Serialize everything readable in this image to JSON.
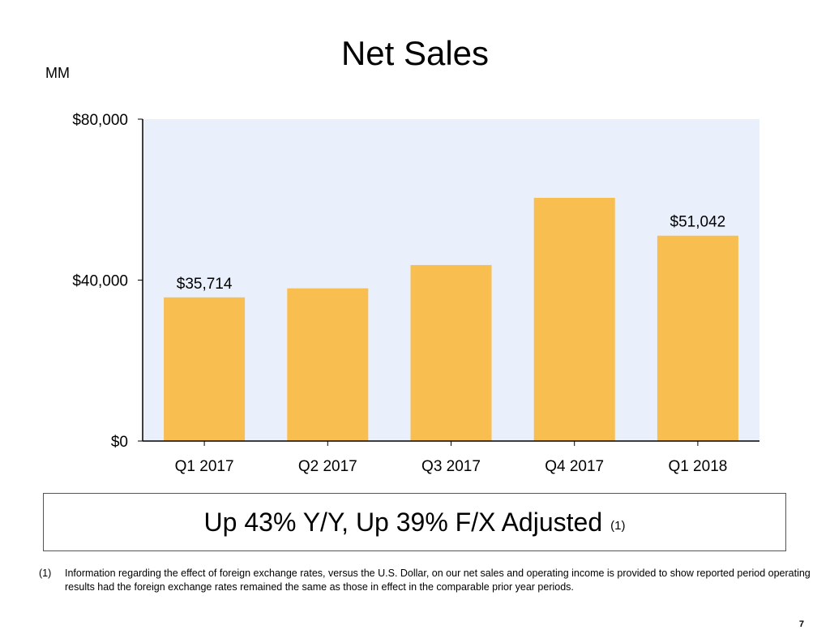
{
  "slide": {
    "page_number": "7"
  },
  "chart_data": {
    "type": "bar",
    "title": "Net Sales",
    "unit_label": "MM",
    "categories": [
      "Q1 2017",
      "Q2 2017",
      "Q3 2017",
      "Q4 2017",
      "Q1 2018"
    ],
    "values": [
      35714,
      37955,
      43744,
      60453,
      51042
    ],
    "data_labels": [
      "$35,714",
      "",
      "",
      "",
      "$51,042"
    ],
    "ylim": [
      0,
      80000
    ],
    "y_ticks": [
      {
        "value": 0,
        "label": "$0"
      },
      {
        "value": 40000,
        "label": "$40,000"
      },
      {
        "value": 80000,
        "label": "$80,000"
      }
    ],
    "xlabel": "",
    "ylabel": "",
    "grid": false,
    "colors": {
      "bar": "#F8BE50",
      "plot_background": "#EAF0FB",
      "axis": "#000000"
    }
  },
  "callout": {
    "text": "Up 43% Y/Y, Up 39% F/X Adjusted",
    "ref": "(1)"
  },
  "footnote": {
    "marker": "(1)",
    "text": "Information regarding the effect of foreign exchange rates, versus the U.S. Dollar, on our net sales and operating income is provided to show reported period operating results had the foreign exchange rates remained the same as those in effect in the comparable prior year periods."
  }
}
